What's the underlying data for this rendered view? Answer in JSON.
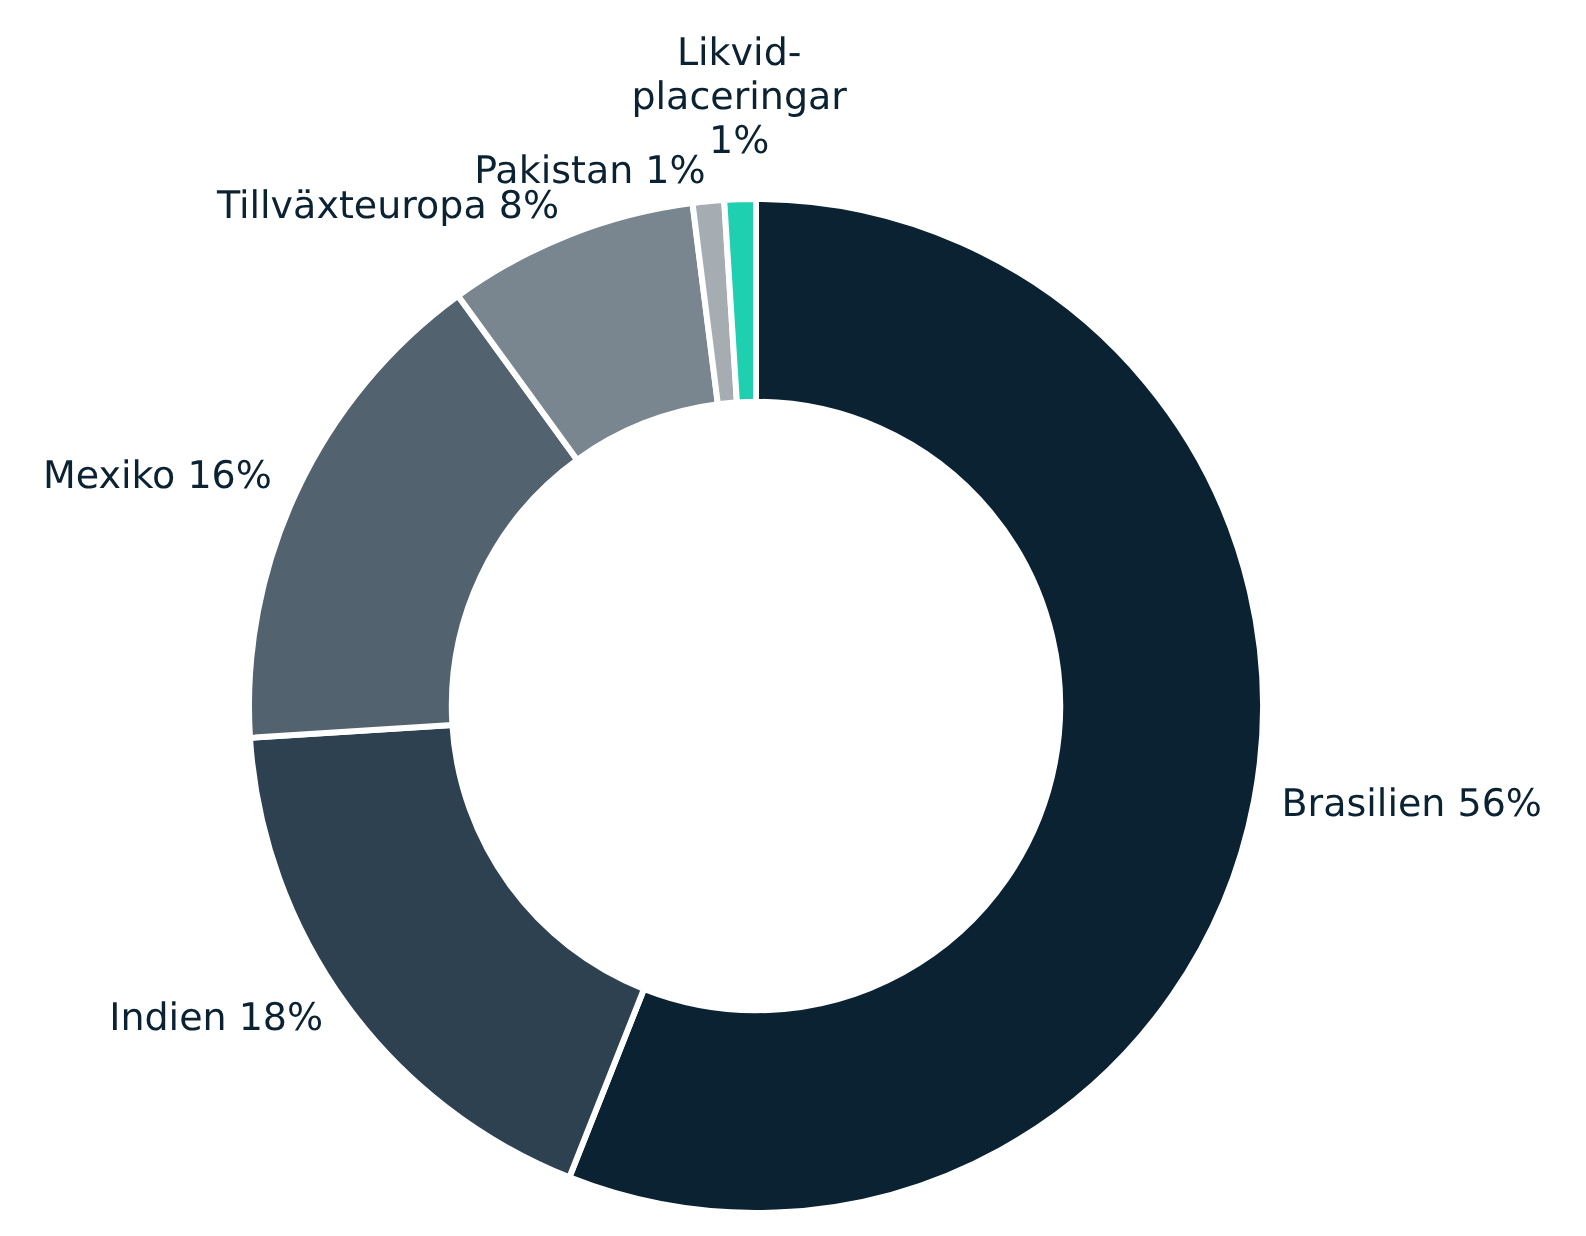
{
  "chart_data": {
    "type": "donut",
    "categories": [
      "Brasilien",
      "Indien",
      "Mexiko",
      "Tillväxteuropa",
      "Pakistan",
      "Likvid-placeringar"
    ],
    "values": [
      56,
      18,
      16,
      8,
      1,
      1
    ],
    "value_labels": [
      "56%",
      "18%",
      "16%",
      "8%",
      "1%",
      "1%"
    ],
    "colors": [
      "#0b2233",
      "#2e4150",
      "#52626e",
      "#7a868f",
      "#a5adb3",
      "#1ecfb0"
    ],
    "legend": false
  }
}
